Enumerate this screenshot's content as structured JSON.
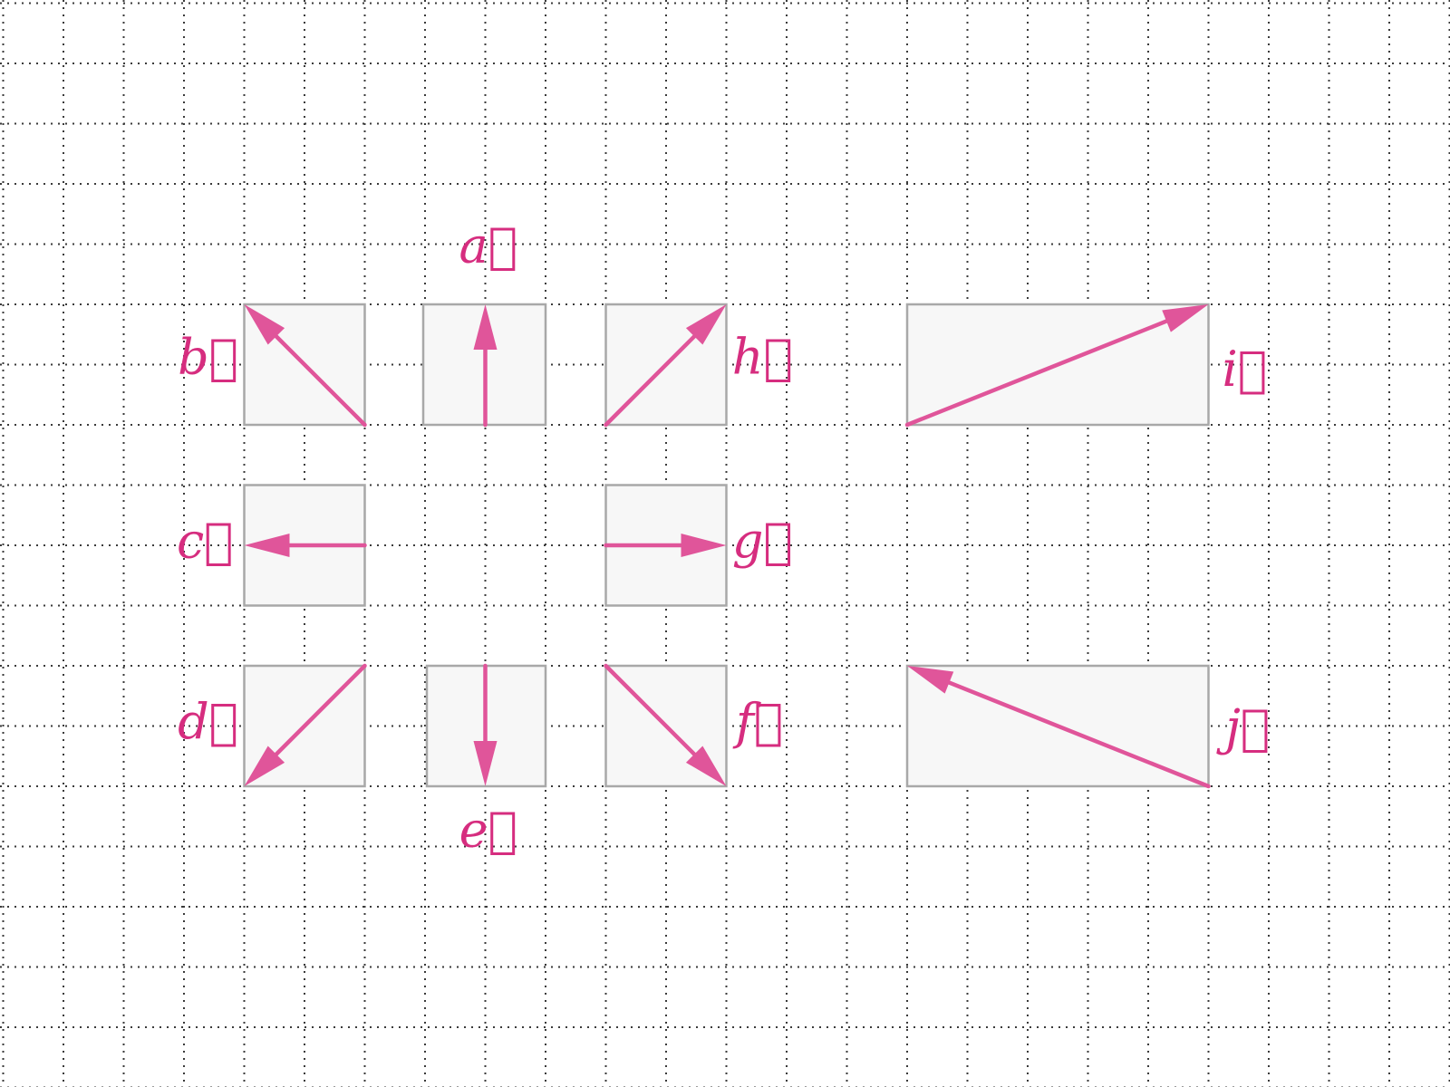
{
  "diagram": {
    "title": "",
    "colors": {
      "vector": "#e0559a",
      "label": "#d62d7f",
      "box_fill": "#f7f7f7",
      "box_stroke": "#a8a8a8",
      "grid": "#3a3a3a"
    },
    "vectors": [
      {
        "id": "a",
        "name": "a",
        "label": "a⃗",
        "dx": 0,
        "dy": 2
      },
      {
        "id": "b",
        "name": "b",
        "label": "b⃗",
        "dx": -2,
        "dy": 2
      },
      {
        "id": "c",
        "name": "c",
        "label": "c⃗",
        "dx": -2,
        "dy": 0
      },
      {
        "id": "d",
        "name": "d",
        "label": "d⃗",
        "dx": -2,
        "dy": -2
      },
      {
        "id": "e",
        "name": "e",
        "label": "e⃗",
        "dx": 0,
        "dy": -2
      },
      {
        "id": "f",
        "name": "f",
        "label": "f⃗",
        "dx": 2,
        "dy": -2
      },
      {
        "id": "g",
        "name": "g",
        "label": "g⃗",
        "dx": 2,
        "dy": 0
      },
      {
        "id": "h",
        "name": "h",
        "label": "h⃗",
        "dx": 2,
        "dy": 2
      },
      {
        "id": "i",
        "name": "i",
        "label": "i⃗",
        "dx": 5,
        "dy": 2
      },
      {
        "id": "j",
        "name": "j",
        "label": "j⃗",
        "dx": -5,
        "dy": 2
      }
    ]
  }
}
